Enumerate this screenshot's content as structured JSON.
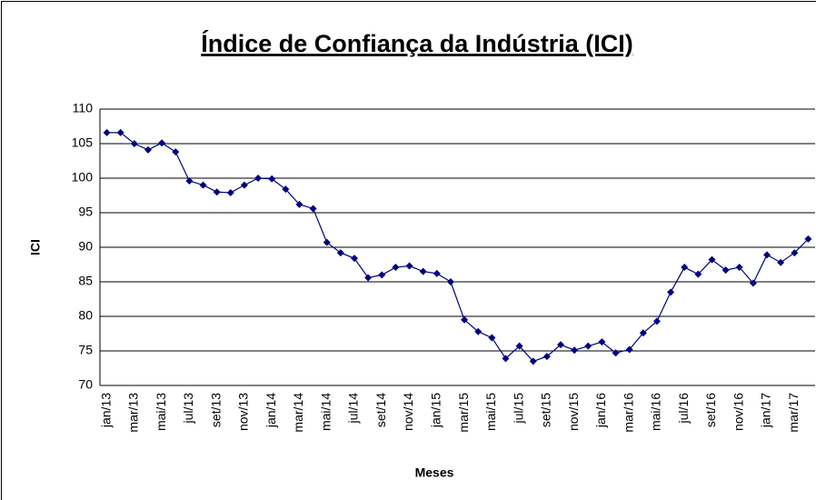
{
  "chart_data": {
    "type": "line",
    "title": "Índice de Confiança da Indústria (ICI)",
    "x_label": "Meses",
    "y_label": "ICI",
    "categories": [
      "jan/13",
      null,
      "mar/13",
      null,
      "mai/13",
      null,
      "jul/13",
      null,
      "set/13",
      null,
      "nov/13",
      null,
      "jan/14",
      null,
      "mar/14",
      null,
      "mai/14",
      null,
      "jul/14",
      null,
      "set/14",
      null,
      "nov/14",
      null,
      "jan/15",
      null,
      "mar/15",
      null,
      "mai/15",
      null,
      "jul/15",
      null,
      "set/15",
      null,
      "nov/15",
      null,
      "jan/16",
      null,
      "mar/16",
      null,
      "mai/16",
      null,
      "jul/16",
      null,
      "set/16",
      null,
      "nov/16",
      null,
      "jan/17",
      null,
      "mar/17",
      null
    ],
    "values": [
      106.6,
      106.6,
      105.0,
      104.1,
      105.1,
      103.8,
      99.6,
      99.0,
      98.0,
      97.9,
      99.0,
      100.0,
      99.9,
      98.4,
      96.2,
      95.6,
      90.7,
      89.2,
      88.4,
      85.6,
      86.0,
      87.1,
      87.3,
      86.5,
      86.2,
      85.0,
      79.5,
      77.8,
      76.9,
      73.9,
      75.7,
      73.5,
      74.2,
      75.9,
      75.1,
      75.7,
      76.3,
      74.7,
      75.2,
      77.6,
      79.3,
      83.5,
      87.1,
      86.1,
      88.2,
      86.7,
      87.1,
      84.8,
      88.9,
      87.8,
      89.2,
      91.2
    ],
    "color": "#000080",
    "ylim": [
      70,
      110
    ],
    "yticks": [
      70,
      75,
      80,
      85,
      90,
      95,
      100,
      105,
      110
    ],
    "grid": true
  }
}
